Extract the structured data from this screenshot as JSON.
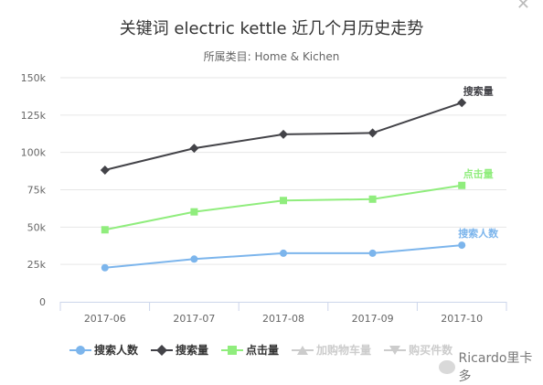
{
  "title": "关键词 electric kettle 近几个月历史走势",
  "subtitle": "所属类目: Home & Kichen",
  "watermark": "Ricardo里卡多",
  "colors": {
    "search_people": "#7cb5ec",
    "search_volume": "#434348",
    "clicks": "#90ed7d",
    "disabled": "#cccccc"
  },
  "chart_data": {
    "type": "line",
    "categories": [
      "2017-06",
      "2017-07",
      "2017-08",
      "2017-09",
      "2017-10"
    ],
    "y_ticks": [
      "0",
      "25k",
      "50k",
      "75k",
      "100k",
      "125k",
      "150k"
    ],
    "ylim": [
      0,
      150000
    ],
    "grid": true,
    "legend_position": "bottom",
    "series": [
      {
        "name": "搜索人数",
        "marker": "circle",
        "color": "#7cb5ec",
        "end_label": "搜索人数",
        "values": [
          22800,
          28600,
          32500,
          32500,
          37900
        ]
      },
      {
        "name": "搜索量",
        "marker": "diamond",
        "color": "#434348",
        "end_label": "搜索量",
        "values": [
          88200,
          102800,
          112100,
          113000,
          133300
        ]
      },
      {
        "name": "点击量",
        "marker": "square",
        "color": "#90ed7d",
        "end_label": "点击量",
        "values": [
          48200,
          60200,
          67800,
          68700,
          77900
        ]
      }
    ],
    "legend": [
      {
        "name": "搜索人数",
        "marker": "circle",
        "active": true
      },
      {
        "name": "搜索量",
        "marker": "diamond",
        "active": true
      },
      {
        "name": "点击量",
        "marker": "square",
        "active": true
      },
      {
        "name": "加购物车量",
        "marker": "triangle",
        "active": false
      },
      {
        "name": "购买件数",
        "marker": "triangle-down",
        "active": false
      }
    ]
  }
}
